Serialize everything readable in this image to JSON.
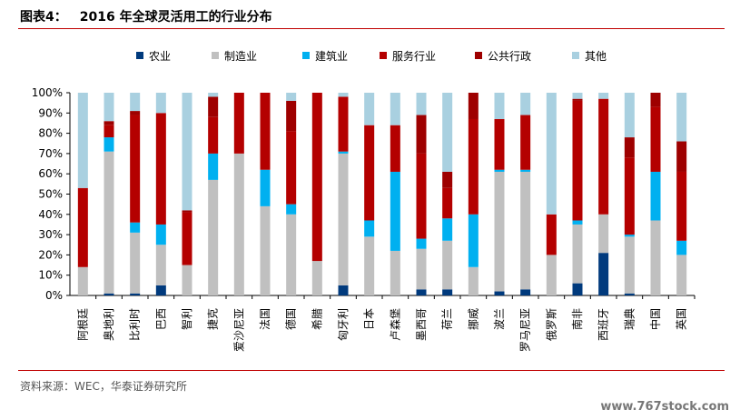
{
  "header": {
    "figure_label": "图表4：",
    "title": "2016 年全球灵活用工的行业分布"
  },
  "footer": {
    "source": "资料来源：WEC，华泰证券研究所",
    "watermark": "www.767stock.com"
  },
  "chart_data": {
    "type": "bar",
    "stacked": true,
    "legend_position": "top",
    "grid": false,
    "ylim": [
      0,
      100
    ],
    "yticks": [
      "0%",
      "10%",
      "20%",
      "30%",
      "40%",
      "50%",
      "60%",
      "70%",
      "80%",
      "90%",
      "100%"
    ],
    "categories": [
      "阿根廷",
      "奥地利",
      "比利时",
      "巴西",
      "智利",
      "捷克",
      "爱沙尼亚",
      "法国",
      "德国",
      "希腊",
      "匈牙利",
      "日本",
      "卢森堡",
      "墨西哥",
      "荷兰",
      "挪威",
      "波兰",
      "罗马尼亚",
      "俄罗斯",
      "南非",
      "西班牙",
      "瑞典",
      "中国",
      "英国"
    ],
    "series": [
      {
        "name": "农业",
        "color": "#003a7d",
        "values": [
          0,
          1,
          1,
          5,
          0,
          0,
          0,
          0,
          0,
          0,
          5,
          0,
          0,
          3,
          3,
          0,
          2,
          3,
          0,
          6,
          21,
          1,
          0,
          0
        ]
      },
      {
        "name": "制造业",
        "color": "#c0c0c0",
        "values": [
          14,
          70,
          30,
          20,
          15,
          57,
          70,
          44,
          40,
          17,
          65,
          29,
          22,
          20,
          24,
          14,
          59,
          58,
          20,
          29,
          19,
          28,
          37,
          20
        ]
      },
      {
        "name": "建筑业",
        "color": "#00b0f0",
        "values": [
          0,
          7,
          5,
          10,
          0,
          13,
          0,
          18,
          5,
          0,
          1,
          8,
          39,
          5,
          11,
          26,
          1,
          1,
          0,
          2,
          0,
          1,
          24,
          7
        ]
      },
      {
        "name": "服务行业",
        "color": "#b40000",
        "values": [
          39,
          6,
          53,
          55,
          26,
          18,
          30,
          38,
          36,
          83,
          27,
          47,
          23,
          42,
          15,
          47,
          25,
          27,
          20,
          59,
          57,
          38,
          32,
          34
        ]
      },
      {
        "name": "公共行政",
        "color": "#9e0000",
        "values": [
          0,
          2,
          2,
          0,
          1,
          10,
          0,
          0,
          15,
          0,
          0,
          0,
          0,
          19,
          8,
          13,
          0,
          0,
          0,
          1,
          0,
          10,
          7,
          15
        ]
      },
      {
        "name": "其他",
        "color": "#a9d0e0",
        "values": [
          47,
          14,
          9,
          10,
          58,
          2,
          0,
          0,
          4,
          0,
          2,
          16,
          16,
          11,
          39,
          0,
          13,
          11,
          60,
          3,
          3,
          22,
          0,
          24
        ]
      }
    ]
  }
}
